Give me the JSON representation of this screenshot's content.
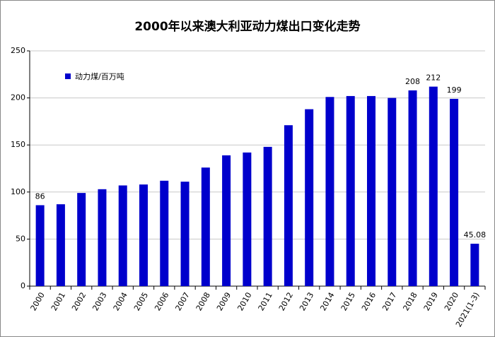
{
  "chart_data": {
    "type": "bar",
    "title": "2000年以来澳大利亚动力煤出口变化走势",
    "categories": [
      "2000",
      "2001",
      "2002",
      "2003",
      "2004",
      "2005",
      "2006",
      "2007",
      "2008",
      "2009",
      "2010",
      "2011",
      "2012",
      "2013",
      "2014",
      "2015",
      "2016",
      "2017",
      "2018",
      "2019",
      "2020",
      "2021(1-3)"
    ],
    "series": [
      {
        "name": "动力煤/百万吨",
        "color": "#0000cc",
        "values": [
          86,
          87,
          99,
          103,
          107,
          108,
          112,
          111,
          126,
          139,
          142,
          148,
          171,
          188,
          201,
          202,
          202,
          200,
          208,
          212,
          199,
          45.08
        ],
        "value_labels": [
          "86",
          null,
          null,
          null,
          null,
          null,
          null,
          null,
          null,
          null,
          null,
          null,
          null,
          null,
          null,
          null,
          null,
          null,
          "208",
          "212",
          "199",
          "45.08"
        ]
      }
    ],
    "ylim": [
      0,
      250
    ],
    "yticks": [
      0,
      50,
      100,
      150,
      200,
      250
    ],
    "grid": true,
    "label_color": "#e00000"
  }
}
